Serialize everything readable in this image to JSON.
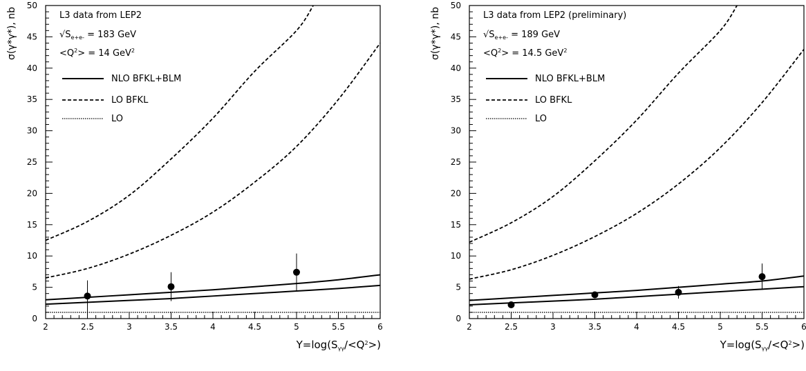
{
  "chart_data": [
    {
      "type": "line",
      "xlabel_parts": [
        "Y=log(S",
        "γγ",
        "/<Q",
        "2",
        ">)"
      ],
      "ylabel_parts": [
        "σ(γ*γ*), nb"
      ],
      "xlim": [
        2,
        6
      ],
      "ylim": [
        0,
        50
      ],
      "x_ticks": [
        2,
        2.5,
        3,
        3.5,
        4,
        4.5,
        5,
        5.5,
        6
      ],
      "x_tick_labels": [
        "2",
        "2.5",
        "3",
        "3.5",
        "4",
        "4.5",
        "5",
        "5.5",
        "6"
      ],
      "y_ticks": [
        0,
        5,
        10,
        15,
        20,
        25,
        30,
        35,
        40,
        45,
        50
      ],
      "y_tick_labels": [
        "0",
        "5",
        "10",
        "15",
        "20",
        "25",
        "30",
        "35",
        "40",
        "45",
        "50"
      ],
      "annotations": {
        "title": "L3 data from LEP2",
        "sqrt_s_parts": [
          "√S",
          "e+e-",
          " = 183 GeV"
        ],
        "q2_parts": [
          "<Q",
          "2",
          "> = 14 GeV",
          "2"
        ]
      },
      "legend": [
        {
          "label": "NLO BFKL+BLM",
          "style": "solid"
        },
        {
          "label": "LO BFKL",
          "style": "dashed"
        },
        {
          "label": "LO",
          "style": "dotted"
        }
      ],
      "series": [
        {
          "style": "solid",
          "x": [
            2,
            2.5,
            3,
            3.5,
            4,
            4.5,
            5,
            5.5,
            6
          ],
          "y": [
            3.0,
            3.4,
            3.8,
            4.2,
            4.6,
            5.1,
            5.6,
            6.2,
            7.0
          ]
        },
        {
          "style": "solid",
          "x": [
            2,
            2.5,
            3,
            3.5,
            4,
            4.5,
            5,
            5.5,
            6
          ],
          "y": [
            2.3,
            2.6,
            2.9,
            3.2,
            3.6,
            4.0,
            4.4,
            4.8,
            5.3
          ]
        },
        {
          "style": "dashed",
          "x": [
            2,
            2.5,
            3,
            3.5,
            4,
            4.5,
            5,
            5.2
          ],
          "y": [
            12.5,
            15.5,
            19.7,
            25.5,
            32.0,
            39.5,
            46.0,
            50
          ]
        },
        {
          "style": "dashed",
          "x": [
            2,
            2.5,
            3,
            3.5,
            4,
            4.5,
            5,
            5.5,
            6
          ],
          "y": [
            6.5,
            8.0,
            10.3,
            13.3,
            17.0,
            21.8,
            27.5,
            35.0,
            44.0
          ]
        },
        {
          "style": "dotted",
          "x": [
            2,
            6
          ],
          "y": [
            1.0,
            1.0
          ]
        }
      ],
      "points": [
        {
          "x": 2.5,
          "y": 3.6,
          "err": 2.5
        },
        {
          "x": 3.5,
          "y": 5.1,
          "err": 2.3
        },
        {
          "x": 5.0,
          "y": 7.4,
          "err": 3.0
        }
      ]
    },
    {
      "type": "line",
      "xlabel_parts": [
        "Y=log(S",
        "γγ",
        "/<Q",
        "2",
        ">)"
      ],
      "ylabel_parts": [
        "σ(γ*γ*), nb"
      ],
      "xlim": [
        2,
        6
      ],
      "ylim": [
        0,
        50
      ],
      "x_ticks": [
        2,
        2.5,
        3,
        3.5,
        4,
        4.5,
        5,
        5.5,
        6
      ],
      "x_tick_labels": [
        "2",
        "2.5",
        "3",
        "3.5",
        "4",
        "4.5",
        "5",
        "5.5",
        "6"
      ],
      "y_ticks": [
        0,
        5,
        10,
        15,
        20,
        25,
        30,
        35,
        40,
        45,
        50
      ],
      "y_tick_labels": [
        "0",
        "5",
        "10",
        "15",
        "20",
        "25",
        "30",
        "35",
        "40",
        "45",
        "50"
      ],
      "annotations": {
        "title": "L3 data from LEP2 (preliminary)",
        "sqrt_s_parts": [
          "√S",
          "e+e-",
          " = 189 GeV"
        ],
        "q2_parts": [
          "<Q",
          "2",
          "> = 14.5 GeV",
          "2"
        ]
      },
      "legend": [
        {
          "label": "NLO BFKL+BLM",
          "style": "solid"
        },
        {
          "label": "LO BFKL",
          "style": "dashed"
        },
        {
          "label": "LO",
          "style": "dotted"
        }
      ],
      "series": [
        {
          "style": "solid",
          "x": [
            2,
            2.5,
            3,
            3.5,
            4,
            4.5,
            5,
            5.5,
            6
          ],
          "y": [
            2.9,
            3.3,
            3.7,
            4.1,
            4.5,
            5.0,
            5.5,
            6.0,
            6.8
          ]
        },
        {
          "style": "solid",
          "x": [
            2,
            2.5,
            3,
            3.5,
            4,
            4.5,
            5,
            5.5,
            6
          ],
          "y": [
            2.2,
            2.5,
            2.8,
            3.1,
            3.5,
            3.9,
            4.3,
            4.7,
            5.1
          ]
        },
        {
          "style": "dashed",
          "x": [
            2,
            2.5,
            3,
            3.5,
            4,
            4.5,
            5,
            5.2
          ],
          "y": [
            12.2,
            15.3,
            19.5,
            25.2,
            31.7,
            39.2,
            46.0,
            50
          ]
        },
        {
          "style": "dashed",
          "x": [
            2,
            2.5,
            3,
            3.5,
            4,
            4.5,
            5,
            5.5,
            6
          ],
          "y": [
            6.3,
            7.8,
            10.1,
            13.1,
            16.8,
            21.5,
            27.3,
            34.5,
            43.0
          ]
        },
        {
          "style": "dotted",
          "x": [
            2,
            6
          ],
          "y": [
            1.0,
            1.0
          ]
        }
      ],
      "points": [
        {
          "x": 2.5,
          "y": 2.2,
          "err": 0.3
        },
        {
          "x": 3.5,
          "y": 3.8,
          "err": 0.4
        },
        {
          "x": 4.5,
          "y": 4.2,
          "err": 1.0
        },
        {
          "x": 5.5,
          "y": 6.7,
          "err": 2.1
        }
      ]
    }
  ]
}
